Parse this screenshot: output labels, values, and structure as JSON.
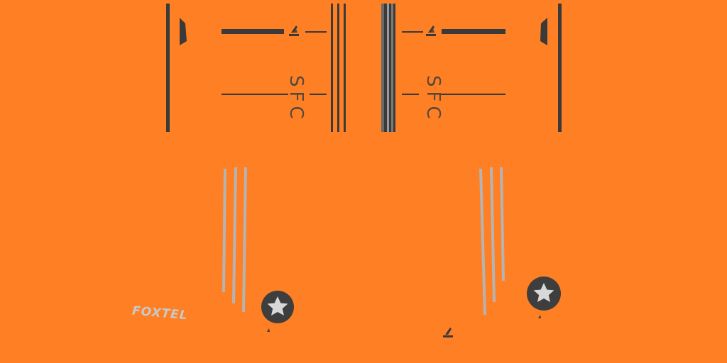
{
  "colors": {
    "background": "#ff7f24",
    "trim_dark": "#3a3a3a",
    "stripe_grey": "#b4b4b4",
    "text_dark": "#55493b",
    "sponsor_text": "#c9c9c9",
    "badge_dark": "#3e3e3e",
    "badge_star": "#d8d8d8"
  },
  "shirt": {
    "left_panel": {
      "monogram": "SFC",
      "maker_logo_icon": "three-stripe-logo-icon"
    },
    "right_panel": {
      "monogram": "SFC",
      "maker_logo_icon": "three-stripe-logo-icon"
    }
  },
  "shorts": {
    "sponsor": "FOXTEL",
    "badge_icon": "star-badge-icon"
  }
}
